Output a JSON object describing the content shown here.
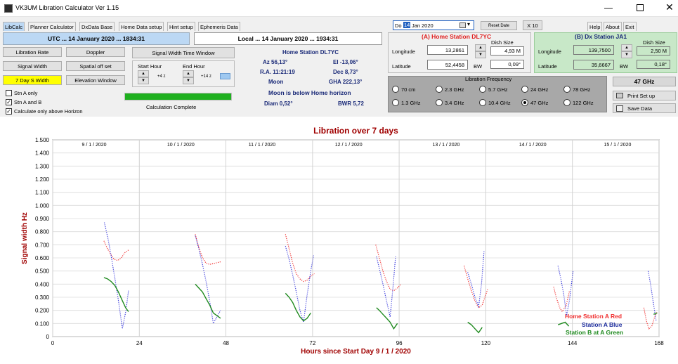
{
  "window": {
    "title": "VK3UM Libration Calculator Ver 1.15"
  },
  "tabs": [
    "LibCalc",
    "Planner Calculator",
    "DxData Base",
    "Home Data setup",
    "Hint setup",
    "Ephemeris Data"
  ],
  "right_tabs": [
    "Help",
    "About",
    "Exit"
  ],
  "header": {
    "utc": "UTC ... 14 January 2020 ... 1834:31",
    "local": "Local ... 14 January 2020 ... 1934:31"
  },
  "date_picker": {
    "day": "Do",
    "date": "14",
    "month": "Jan",
    "year": "2020"
  },
  "buttons": {
    "libration_rate": "Libration Rate",
    "doppler": "Doppler",
    "signal_width": "Signal Width",
    "spatial_off_set": "Spatial off set",
    "day7": "7 Day S Width",
    "elevation_window": "Elevation Window",
    "signal_width_time_window": "Signal Width Time Window",
    "reset_date": "Reset Date",
    "x10": "X 10",
    "print_setup": "Print Set up",
    "save_data": "Save Data"
  },
  "time_window": {
    "start_label": "Start Hour",
    "end_label": "End  Hour",
    "start_value": "+4 z",
    "end_value": "+14 z"
  },
  "checkboxes": [
    {
      "label": "Stn A only",
      "checked": false
    },
    {
      "label": "Stn A and B",
      "checked": true
    },
    {
      "label": "Calculate only above Horizon",
      "checked": true
    }
  ],
  "progress": {
    "label": "Calculation Complete",
    "value": 1.0
  },
  "home_info": {
    "title": "Home Station  DL7YC",
    "az": "Az 56,13°",
    "el": "El -13,06°",
    "ra": "R.A. 11:21:19",
    "dec": "Dec 8,73°",
    "moon": "Moon",
    "gha": "GHA 222,13°",
    "horizon": "Moon is below Home horizon",
    "diam": "Diam 0,52°",
    "bwr": "BWR 5,72"
  },
  "station_a": {
    "title": "(A)  Home Station  DL7YC",
    "longitude_label": "Longitude",
    "longitude": "13,2861",
    "latitude_label": "Latitude",
    "latitude": "52,4458",
    "dish_label": "Dish Size",
    "dish": "4,93 M",
    "bw_label": "BW",
    "bw": "0,09°"
  },
  "station_b": {
    "title": "(B)  Dx Station JA1",
    "longitude_label": "Longitude",
    "longitude": "139,7500",
    "latitude_label": "Latitude",
    "latitude": "35,6667",
    "dish_label": "Dish Size",
    "dish": "2,50 M",
    "bw_label": "BW",
    "bw": "0,18°"
  },
  "frequency": {
    "title": "Libration Frequency",
    "selected": "47 GHz",
    "options": [
      "70 cm",
      "2.3 GHz",
      "5.7 GHz",
      "24 GHz",
      "78 GHz",
      "1.3 GHz",
      "3.4 GHz",
      "10.4 GHz",
      "47 GHz",
      "122 GHz"
    ]
  },
  "colors": {
    "red": "#f03030",
    "blue": "#3a3adc",
    "green": "#1f8a1f",
    "title": "#a00000",
    "progress": "#1fb01f",
    "highlight_bg": "#bcd8f4",
    "station_b_bg": "#c8e8c8",
    "yellow": "#ffff00"
  },
  "chart_data": {
    "type": "line",
    "title": "Libration over 7 days",
    "xlabel": "Hours since Start Day 9 / 1 / 2020",
    "ylabel": "Signal width Hz",
    "xlim": [
      0,
      168
    ],
    "ylim": [
      0,
      1.5
    ],
    "x_ticks": [
      "0",
      "24",
      "48",
      "72",
      "96",
      "120",
      "144",
      "168"
    ],
    "y_ticks": [
      "0",
      "0.100",
      "0.200",
      "0.300",
      "0.400",
      "0.500",
      "0.600",
      "0.700",
      "0.800",
      "0.900",
      "1.000",
      "1.100",
      "1.200",
      "1.300",
      "1.400",
      "1.500"
    ],
    "day_labels": [
      {
        "label": "9 / 1 / 2020",
        "hour": 11.5
      },
      {
        "label": "10 / 1 / 2020",
        "hour": 35.5
      },
      {
        "label": "11 / 1 / 2020",
        "hour": 58
      },
      {
        "label": "12 / 1 / 2020",
        "hour": 82
      },
      {
        "label": "13 / 1 / 2020",
        "hour": 109
      },
      {
        "label": "14 / 1 / 2020",
        "hour": 133
      },
      {
        "label": "15 / 1 / 2020",
        "hour": 156.5
      }
    ],
    "legend": [
      "Home Station A Red",
      "Station A Blue",
      "Station B at A Green"
    ],
    "series": [
      {
        "name": "Home Station A Red",
        "style": "dotted",
        "segments": [
          [
            [
              14.2,
              0.73
            ],
            [
              15,
              0.68
            ],
            [
              16,
              0.63
            ],
            [
              17,
              0.59
            ],
            [
              18,
              0.58
            ],
            [
              19,
              0.6
            ],
            [
              20,
              0.64
            ],
            [
              21,
              0.66
            ]
          ],
          [
            [
              39.5,
              0.78
            ],
            [
              40.5,
              0.68
            ],
            [
              41.5,
              0.6
            ],
            [
              42.5,
              0.56
            ],
            [
              43.5,
              0.55
            ],
            [
              45,
              0.56
            ],
            [
              46.5,
              0.57
            ]
          ],
          [
            [
              64.5,
              0.78
            ],
            [
              65.5,
              0.67
            ],
            [
              66.5,
              0.56
            ],
            [
              67.5,
              0.48
            ],
            [
              68.5,
              0.44
            ],
            [
              69.5,
              0.42
            ],
            [
              70.5,
              0.43
            ],
            [
              71.5,
              0.46
            ],
            [
              72.5,
              0.48
            ]
          ],
          [
            [
              89.5,
              0.7
            ],
            [
              90.5,
              0.6
            ],
            [
              91.5,
              0.5
            ],
            [
              92.5,
              0.42
            ],
            [
              93.5,
              0.36
            ],
            [
              94.5,
              0.35
            ],
            [
              95.5,
              0.37
            ],
            [
              96.5,
              0.4
            ]
          ],
          [
            [
              114,
              0.54
            ],
            [
              115,
              0.44
            ],
            [
              116,
              0.35
            ],
            [
              117,
              0.27
            ],
            [
              118,
              0.22
            ],
            [
              119,
              0.24
            ],
            [
              120,
              0.32
            ],
            [
              120.5,
              0.36
            ]
          ],
          [
            [
              138.8,
              0.38
            ],
            [
              139.5,
              0.3
            ],
            [
              140.5,
              0.22
            ],
            [
              141.2,
              0.19
            ],
            [
              142.3,
              0.24
            ],
            [
              143.2,
              0.35
            ]
          ],
          [
            [
              163.8,
              0.22
            ],
            [
              164.5,
              0.12
            ],
            [
              165.2,
              0.06
            ],
            [
              166,
              0.08
            ],
            [
              166.8,
              0.15
            ],
            [
              167.5,
              0.19
            ]
          ]
        ]
      },
      {
        "name": "Station A Blue",
        "style": "dotted",
        "segments": [
          [
            [
              14.3,
              0.87
            ],
            [
              15.3,
              0.75
            ],
            [
              16.3,
              0.6
            ],
            [
              17.3,
              0.43
            ],
            [
              18.3,
              0.26
            ],
            [
              19.3,
              0.06
            ],
            [
              20.3,
              0.2
            ],
            [
              21,
              0.35
            ]
          ],
          [
            [
              39.5,
              0.77
            ],
            [
              40.5,
              0.67
            ],
            [
              41.5,
              0.55
            ],
            [
              42.5,
              0.42
            ],
            [
              43.5,
              0.27
            ],
            [
              44.5,
              0.1
            ],
            [
              45.5,
              0.15
            ],
            [
              46.5,
              0.2
            ]
          ],
          [
            [
              64.5,
              0.69
            ],
            [
              65.5,
              0.59
            ],
            [
              66.5,
              0.47
            ],
            [
              67.5,
              0.34
            ],
            [
              68.5,
              0.2
            ],
            [
              69.5,
              0.11
            ],
            [
              70.5,
              0.32
            ],
            [
              71.5,
              0.5
            ],
            [
              72.3,
              0.62
            ]
          ],
          [
            [
              89.7,
              0.61
            ],
            [
              90.5,
              0.52
            ],
            [
              91.5,
              0.4
            ],
            [
              92.5,
              0.27
            ],
            [
              93.5,
              0.15
            ],
            [
              94.3,
              0.38
            ],
            [
              95,
              0.61
            ]
          ],
          [
            [
              115,
              0.49
            ],
            [
              116,
              0.4
            ],
            [
              117,
              0.3
            ],
            [
              118,
              0.23
            ],
            [
              118.8,
              0.4
            ],
            [
              119.5,
              0.65
            ]
          ],
          [
            [
              140,
              0.54
            ],
            [
              140.8,
              0.44
            ],
            [
              141.6,
              0.32
            ],
            [
              142.4,
              0.16
            ],
            [
              143.2,
              0.28
            ],
            [
              144.2,
              0.5
            ]
          ],
          [
            [
              165,
              0.5
            ],
            [
              165.7,
              0.39
            ],
            [
              166.4,
              0.26
            ],
            [
              167.2,
              0.12
            ]
          ]
        ]
      },
      {
        "name": "Station B at A Green",
        "style": "solid",
        "segments": [
          [
            [
              14.2,
              0.45
            ],
            [
              15.2,
              0.44
            ],
            [
              16.2,
              0.42
            ],
            [
              17.2,
              0.39
            ],
            [
              18.2,
              0.34
            ],
            [
              19.2,
              0.28
            ],
            [
              20.2,
              0.22
            ],
            [
              21,
              0.19
            ]
          ],
          [
            [
              39.5,
              0.4
            ],
            [
              40.5,
              0.37
            ],
            [
              41.5,
              0.34
            ],
            [
              42.5,
              0.29
            ],
            [
              43.5,
              0.24
            ],
            [
              44.5,
              0.18
            ],
            [
              45.5,
              0.16
            ],
            [
              46.5,
              0.14
            ]
          ],
          [
            [
              64.5,
              0.33
            ],
            [
              65.5,
              0.3
            ],
            [
              66.5,
              0.26
            ],
            [
              67.5,
              0.2
            ],
            [
              68.5,
              0.15
            ],
            [
              69.5,
              0.12
            ],
            [
              70.5,
              0.14
            ],
            [
              71.5,
              0.18
            ]
          ],
          [
            [
              89.7,
              0.22
            ],
            [
              90.5,
              0.2
            ],
            [
              91.5,
              0.17
            ],
            [
              92.5,
              0.14
            ],
            [
              93.5,
              0.11
            ],
            [
              94.5,
              0.06
            ],
            [
              95.5,
              0.1
            ]
          ],
          [
            [
              115,
              0.11
            ],
            [
              116,
              0.09
            ],
            [
              117,
              0.06
            ],
            [
              118,
              0.03
            ],
            [
              119,
              0.07
            ]
          ],
          [
            [
              140,
              0.09
            ],
            [
              141,
              0.1
            ],
            [
              142,
              0.11
            ],
            [
              143,
              0.08
            ]
          ],
          [
            [
              167.5,
              0.18
            ],
            [
              166.5,
              0.17
            ]
          ]
        ]
      }
    ]
  }
}
